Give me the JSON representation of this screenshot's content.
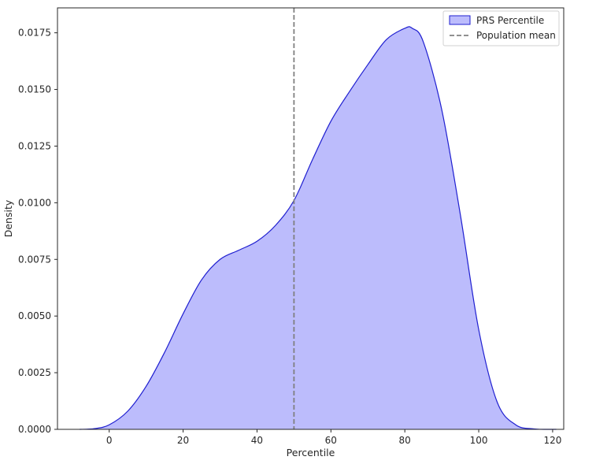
{
  "chart_data": {
    "type": "area",
    "title": "",
    "xlabel": "Percentile",
    "ylabel": "Density",
    "xlim": [
      -14,
      123
    ],
    "ylim": [
      0,
      0.0186
    ],
    "x_ticks": [
      0,
      20,
      40,
      60,
      80,
      100,
      120
    ],
    "x_tick_labels": [
      "0",
      "20",
      "40",
      "60",
      "80",
      "100",
      "120"
    ],
    "y_ticks": [
      0,
      0.0025,
      0.005,
      0.0075,
      0.01,
      0.0125,
      0.015,
      0.0175
    ],
    "y_tick_labels": [
      "0.0000",
      "0.0025",
      "0.0050",
      "0.0075",
      "0.0100",
      "0.0125",
      "0.0150",
      "0.0175"
    ],
    "grid": false,
    "legend_position": "top-right",
    "series": [
      {
        "name": "PRS Percentile",
        "kind": "kde-fill",
        "fill_color": "#bcbcfc",
        "line_color": "#1f1fd0",
        "x": [
          -8,
          -4,
          0,
          5,
          10,
          15,
          20,
          25,
          30,
          35,
          40,
          45,
          50,
          55,
          60,
          65,
          70,
          75,
          80,
          82,
          85,
          90,
          95,
          100,
          105,
          110,
          115,
          121
        ],
        "y": [
          0,
          3e-05,
          0.0002,
          0.0008,
          0.0019,
          0.0034,
          0.0051,
          0.0066,
          0.0075,
          0.0079,
          0.0083,
          0.009,
          0.0101,
          0.0119,
          0.0136,
          0.0149,
          0.0161,
          0.0172,
          0.0177,
          0.0177,
          0.0171,
          0.0141,
          0.0095,
          0.0044,
          0.0012,
          0.0002,
          2e-05,
          0
        ]
      }
    ],
    "reference_lines": [
      {
        "name": "Population mean",
        "orientation": "vertical",
        "x": 50,
        "color": "#808080",
        "dash": true
      }
    ]
  }
}
